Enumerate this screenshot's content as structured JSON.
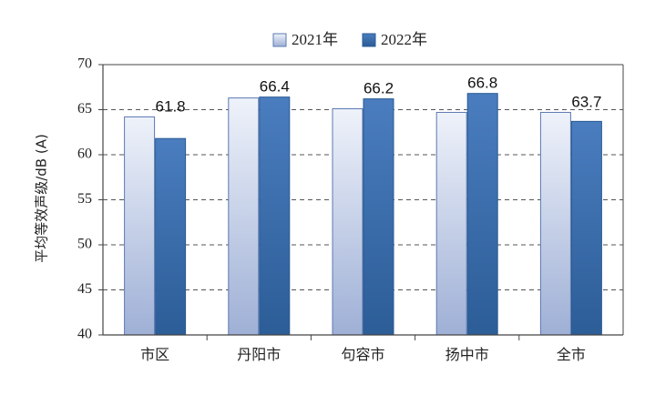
{
  "chart_data": {
    "type": "bar",
    "categories": [
      "市区",
      "丹阳市",
      "句容市",
      "扬中市",
      "全市"
    ],
    "series": [
      {
        "name": "2021年",
        "values": [
          64.2,
          66.3,
          65.1,
          64.7,
          64.7
        ],
        "color_top": "#eef2fa",
        "color_bottom": "#9fb0d6",
        "stroke": "#5b79b0"
      },
      {
        "name": "2022年",
        "values": [
          61.8,
          66.4,
          66.2,
          66.8,
          63.7
        ],
        "color_top": "#4a7dbf",
        "color_bottom": "#2c5d97",
        "stroke": "#2a5a94"
      }
    ],
    "data_labels": [
      "61.8",
      "66.4",
      "66.2",
      "66.8",
      "63.7"
    ],
    "ylabel": "平均等效声级/dB (A)",
    "xlabel": "",
    "ylim": [
      40,
      70
    ],
    "yticks": [
      40,
      45,
      50,
      55,
      60,
      65,
      70
    ],
    "grid": "dashed-horizontal",
    "legend_position": "top-center"
  }
}
